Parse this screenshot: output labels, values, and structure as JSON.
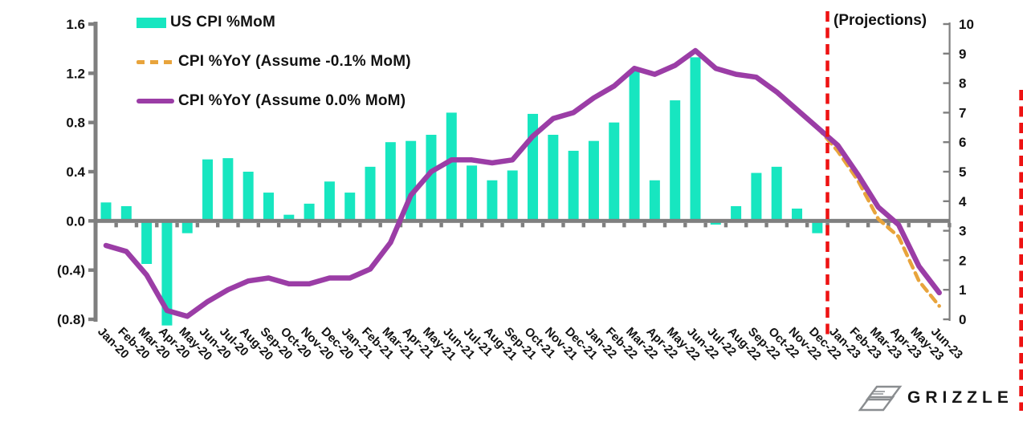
{
  "legend": {
    "items": [
      {
        "label": "US CPI %MoM",
        "swatch": "bar",
        "color": "#17E6C0"
      },
      {
        "label": "CPI %YoY (Assume -0.1% MoM)",
        "swatch": "dash",
        "color": "#E8A43C"
      },
      {
        "label": "CPI %YoY (Assume 0.0% MoM)",
        "swatch": "line",
        "color": "#9B3DA6"
      }
    ]
  },
  "annotations": {
    "projections_label": "(Projections)"
  },
  "branding": {
    "logo_text": "GRIZZLE"
  },
  "colors": {
    "bar": "#17E6C0",
    "line_solid": "#9B3DA6",
    "line_dashed": "#E8A43C",
    "projection_line": "#EE1212",
    "axis": "#7F7F7F",
    "text": "#121212"
  },
  "chart_data": {
    "type": "combo",
    "title": "",
    "grid": false,
    "legend_position": "top-left",
    "categories": [
      "Jan-20",
      "Feb-20",
      "Mar-20",
      "Apr-20",
      "May-20",
      "Jun-20",
      "Jul-20",
      "Aug-20",
      "Sep-20",
      "Oct-20",
      "Nov-20",
      "Dec-20",
      "Jan-21",
      "Feb-21",
      "Mar-21",
      "Apr-21",
      "May-21",
      "Jun-21",
      "Jul-21",
      "Aug-21",
      "Sep-21",
      "Oct-21",
      "Nov-21",
      "Dec-21",
      "Jan-22",
      "Feb-22",
      "Mar-22",
      "Apr-22",
      "May-22",
      "Jun-22",
      "Jul-22",
      "Aug-22",
      "Sep-22",
      "Oct-22",
      "Nov-22",
      "Dec-22",
      "Jan-23",
      "Feb-23",
      "Mar-23",
      "Apr-23",
      "May-23",
      "Jun-23"
    ],
    "left_axis": {
      "min": -0.8,
      "max": 1.6,
      "tick_labels": [
        "1.6",
        "1.2",
        "0.8",
        "0.4",
        "0.0",
        "(0.4)",
        "(0.8)"
      ],
      "tick_values": [
        1.6,
        1.2,
        0.8,
        0.4,
        0.0,
        -0.4,
        -0.8
      ]
    },
    "right_axis": {
      "min": 0,
      "max": 10,
      "tick_labels": [
        "10",
        "9",
        "8",
        "7",
        "6",
        "5",
        "4",
        "3",
        "2",
        "1",
        "0"
      ],
      "tick_values": [
        10,
        9,
        8,
        7,
        6,
        5,
        4,
        3,
        2,
        1,
        0
      ]
    },
    "projection_starts_after": "Dec-22",
    "series": [
      {
        "name": "US CPI %MoM",
        "type": "bar",
        "axis": "left",
        "color": "#17E6C0",
        "values": [
          0.15,
          0.12,
          -0.35,
          -0.85,
          -0.1,
          0.5,
          0.51,
          0.4,
          0.23,
          0.05,
          0.14,
          0.32,
          0.23,
          0.44,
          0.64,
          0.65,
          0.7,
          0.88,
          0.45,
          0.33,
          0.41,
          0.87,
          0.7,
          0.57,
          0.65,
          0.8,
          1.22,
          0.33,
          0.98,
          1.33,
          -0.03,
          0.12,
          0.39,
          0.44,
          0.1,
          -0.1,
          null,
          null,
          null,
          null,
          null,
          null
        ]
      },
      {
        "name": "CPI %YoY (Assume -0.1% MoM)",
        "type": "line",
        "dashed": true,
        "axis": "right",
        "color": "#E8A43C",
        "values": [
          null,
          null,
          null,
          null,
          null,
          null,
          null,
          null,
          null,
          null,
          null,
          null,
          null,
          null,
          null,
          null,
          null,
          null,
          null,
          null,
          null,
          null,
          null,
          null,
          null,
          null,
          null,
          null,
          null,
          null,
          null,
          null,
          null,
          null,
          null,
          6.5,
          5.7,
          4.7,
          3.4,
          2.8,
          1.3,
          0.45
        ]
      },
      {
        "name": "CPI %YoY (Assume 0.0% MoM)",
        "type": "line",
        "dashed": false,
        "axis": "right",
        "color": "#9B3DA6",
        "values": [
          2.5,
          2.3,
          1.5,
          0.3,
          0.1,
          0.6,
          1.0,
          1.3,
          1.4,
          1.2,
          1.2,
          1.4,
          1.4,
          1.7,
          2.6,
          4.2,
          5.0,
          5.4,
          5.4,
          5.3,
          5.4,
          6.2,
          6.8,
          7.0,
          7.5,
          7.9,
          8.5,
          8.3,
          8.6,
          9.1,
          8.5,
          8.3,
          8.2,
          7.7,
          7.1,
          6.5,
          5.9,
          4.9,
          3.8,
          3.2,
          1.8,
          0.9
        ]
      }
    ]
  }
}
